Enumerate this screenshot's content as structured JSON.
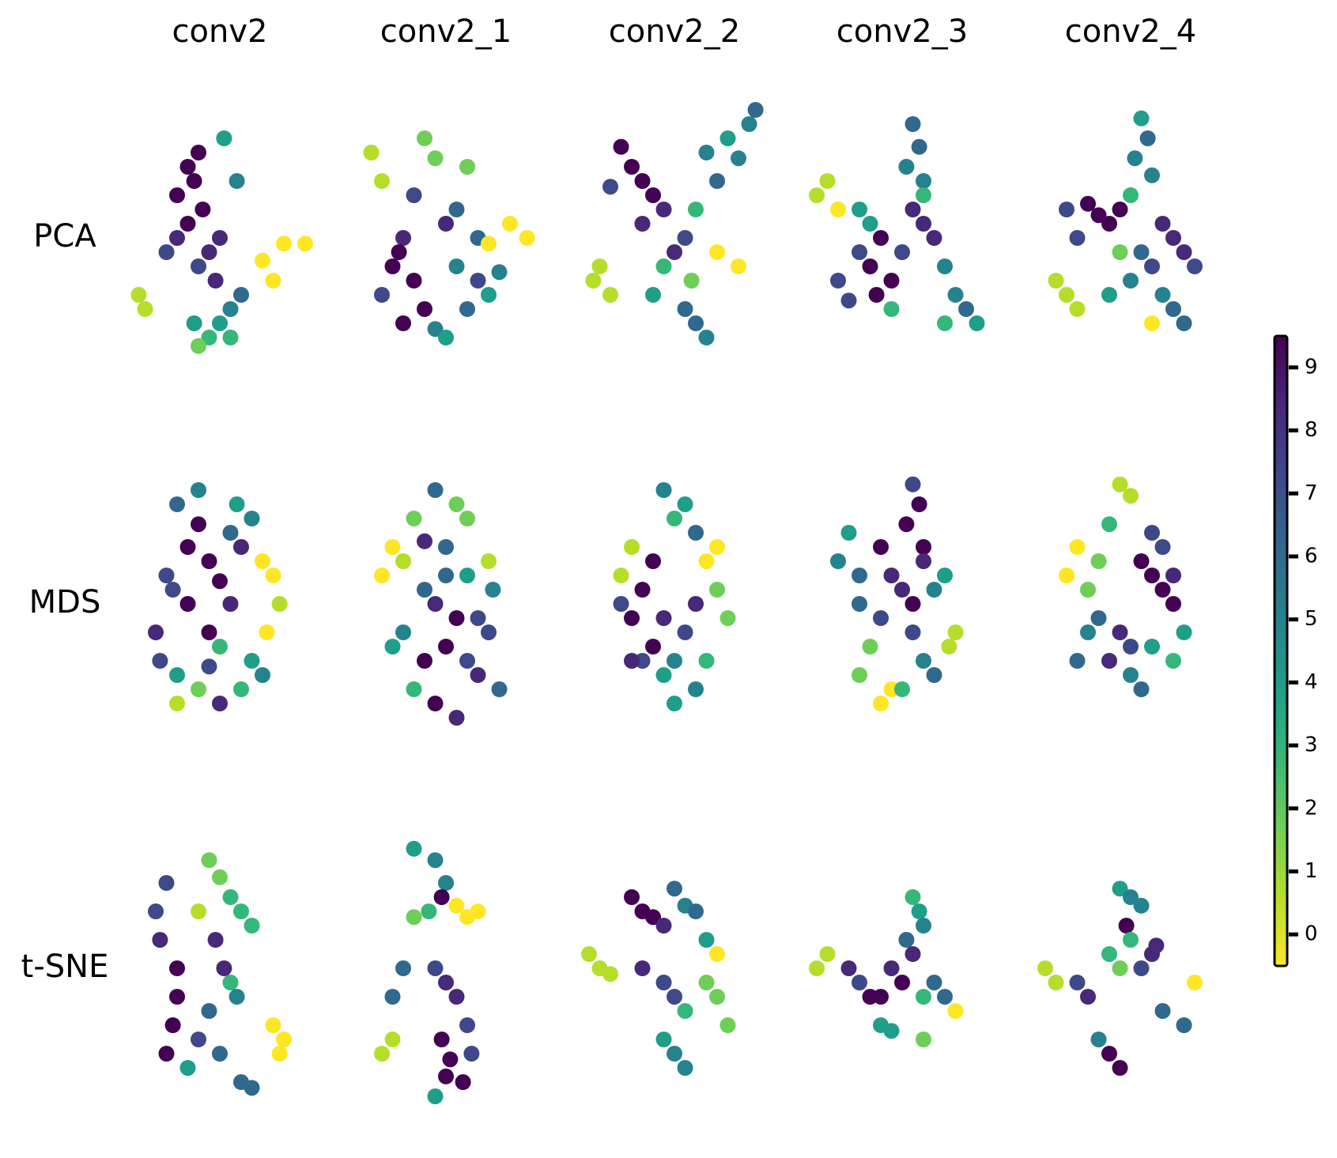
{
  "columns": [
    "conv2",
    "conv2_1",
    "conv2_2",
    "conv2_3",
    "conv2_4"
  ],
  "rows": [
    "PCA",
    "MDS",
    "t-SNE"
  ],
  "colorbar": {
    "lim": [
      -0.5,
      9.5
    ],
    "ticks": [
      0,
      1,
      2,
      3,
      4,
      5,
      6,
      7,
      8,
      9
    ],
    "colors": [
      "#fde725",
      "#b5de2b",
      "#6ece58",
      "#35b779",
      "#1f9e89",
      "#26828e",
      "#31688e",
      "#3e4989",
      "#482878",
      "#440154"
    ]
  },
  "chart_data": [
    {
      "type": "scatter",
      "xlim": [
        0,
        100
      ],
      "ylim": [
        0,
        100
      ],
      "x": [
        35,
        40,
        38,
        30,
        42,
        35,
        30,
        45,
        40,
        50,
        25,
        48,
        80,
        90,
        70,
        75,
        12,
        15,
        55,
        50,
        60,
        45,
        38,
        55,
        40,
        58,
        52
      ],
      "y": [
        75,
        80,
        70,
        65,
        60,
        55,
        50,
        45,
        40,
        50,
        45,
        35,
        48,
        48,
        42,
        35,
        30,
        25,
        25,
        20,
        30,
        15,
        20,
        15,
        12,
        70,
        85
      ],
      "c": [
        9,
        9,
        9,
        9,
        9,
        9,
        8,
        8,
        7,
        8,
        7,
        8,
        0,
        0,
        0,
        0,
        1,
        1,
        5,
        4,
        6,
        3,
        4,
        3,
        2,
        5,
        4
      ]
    },
    {
      "type": "scatter",
      "xlim": [
        0,
        100
      ],
      "ylim": [
        0,
        100
      ],
      "x": [
        15,
        20,
        40,
        45,
        60,
        55,
        35,
        50,
        65,
        30,
        25,
        35,
        40,
        30,
        28,
        80,
        88,
        70,
        55,
        65,
        70,
        45,
        50,
        60,
        75,
        20
      ],
      "y": [
        80,
        70,
        85,
        78,
        75,
        60,
        65,
        55,
        50,
        50,
        40,
        35,
        25,
        20,
        45,
        55,
        50,
        48,
        40,
        35,
        30,
        18,
        15,
        25,
        38,
        30
      ],
      "c": [
        1,
        1,
        2,
        2,
        2,
        6,
        7,
        8,
        6,
        8,
        9,
        9,
        9,
        9,
        9,
        0,
        0,
        0,
        5,
        7,
        4,
        5,
        4,
        6,
        5,
        7
      ]
    },
    {
      "type": "scatter",
      "xlim": [
        0,
        100
      ],
      "ylim": [
        0,
        100
      ],
      "x": [
        25,
        30,
        35,
        40,
        20,
        45,
        65,
        75,
        80,
        70,
        85,
        88,
        60,
        55,
        50,
        15,
        12,
        20,
        40,
        55,
        60,
        65,
        58,
        70,
        80,
        45,
        35
      ],
      "y": [
        82,
        75,
        70,
        65,
        68,
        60,
        80,
        85,
        78,
        70,
        90,
        95,
        60,
        50,
        45,
        40,
        35,
        30,
        30,
        25,
        20,
        15,
        35,
        45,
        40,
        40,
        55
      ],
      "c": [
        9,
        9,
        9,
        9,
        7,
        8,
        5,
        4,
        5,
        6,
        5,
        6,
        3,
        7,
        8,
        1,
        1,
        1,
        4,
        6,
        6,
        5,
        2,
        0,
        0,
        3,
        8
      ]
    },
    {
      "type": "scatter",
      "xlim": [
        0,
        100
      ],
      "ylim": [
        0,
        100
      ],
      "x": [
        55,
        58,
        52,
        60,
        15,
        10,
        20,
        30,
        40,
        35,
        45,
        38,
        25,
        30,
        55,
        60,
        65,
        50,
        70,
        75,
        80,
        85,
        60,
        45,
        20,
        35,
        70
      ],
      "y": [
        90,
        82,
        75,
        70,
        70,
        65,
        60,
        60,
        50,
        40,
        35,
        30,
        28,
        45,
        60,
        55,
        50,
        45,
        40,
        30,
        25,
        20,
        65,
        25,
        35,
        55,
        20
      ],
      "c": [
        6,
        6,
        5,
        5,
        1,
        1,
        0,
        4,
        9,
        9,
        9,
        9,
        7,
        7,
        8,
        8,
        8,
        7,
        5,
        5,
        6,
        4,
        3,
        3,
        7,
        4,
        3
      ]
    },
    {
      "type": "scatter",
      "xlim": [
        0,
        100
      ],
      "ylim": [
        0,
        100
      ],
      "x": [
        55,
        58,
        52,
        60,
        50,
        20,
        30,
        35,
        40,
        45,
        25,
        65,
        70,
        75,
        60,
        55,
        15,
        20,
        25,
        40,
        50,
        65,
        70,
        75,
        60,
        80,
        45
      ],
      "y": [
        92,
        85,
        78,
        72,
        65,
        60,
        62,
        58,
        55,
        60,
        50,
        55,
        50,
        45,
        40,
        45,
        35,
        30,
        25,
        30,
        35,
        30,
        25,
        20,
        20,
        40,
        45
      ],
      "c": [
        4,
        6,
        5,
        5,
        3,
        7,
        9,
        9,
        9,
        9,
        7,
        8,
        8,
        8,
        7,
        6,
        1,
        1,
        1,
        4,
        5,
        5,
        6,
        6,
        0,
        7,
        2
      ]
    },
    {
      "type": "scatter",
      "xlim": [
        0,
        100
      ],
      "ylim": [
        0,
        100
      ],
      "x": [
        30,
        40,
        35,
        45,
        50,
        25,
        55,
        60,
        65,
        70,
        75,
        78,
        72,
        20,
        22,
        30,
        40,
        50,
        60,
        65,
        45,
        35,
        55,
        30,
        45,
        50,
        70,
        58,
        40,
        28
      ],
      "y": [
        85,
        78,
        70,
        65,
        58,
        60,
        75,
        70,
        80,
        65,
        60,
        50,
        40,
        40,
        30,
        25,
        20,
        15,
        20,
        30,
        40,
        50,
        50,
        15,
        28,
        35,
        25,
        85,
        90,
        55
      ],
      "c": [
        6,
        9,
        9,
        9,
        9,
        7,
        6,
        8,
        5,
        0,
        0,
        1,
        0,
        8,
        7,
        4,
        2,
        8,
        3,
        4,
        9,
        9,
        8,
        1,
        7,
        3,
        5,
        4,
        5,
        7
      ]
    },
    {
      "type": "scatter",
      "xlim": [
        0,
        100
      ],
      "ylim": [
        0,
        100
      ],
      "x": [
        45,
        55,
        35,
        60,
        25,
        20,
        30,
        40,
        50,
        60,
        70,
        72,
        65,
        45,
        55,
        50,
        40,
        30,
        25,
        60,
        65,
        70,
        75,
        45,
        55,
        35,
        50,
        40
      ],
      "y": [
        90,
        85,
        80,
        80,
        70,
        60,
        65,
        72,
        70,
        60,
        65,
        55,
        45,
        50,
        45,
        35,
        30,
        40,
        35,
        30,
        25,
        40,
        20,
        15,
        10,
        20,
        60,
        55
      ],
      "c": [
        6,
        2,
        2,
        2,
        0,
        0,
        1,
        8,
        6,
        4,
        1,
        5,
        7,
        8,
        9,
        9,
        9,
        5,
        4,
        7,
        8,
        7,
        6,
        9,
        8,
        3,
        6,
        6
      ]
    },
    {
      "type": "scatter",
      "xlim": [
        0,
        100
      ],
      "ylim": [
        0,
        100
      ],
      "x": [
        45,
        55,
        50,
        60,
        30,
        25,
        40,
        35,
        30,
        45,
        40,
        60,
        65,
        70,
        75,
        55,
        50,
        45,
        60,
        65,
        35,
        50,
        70,
        30,
        25
      ],
      "y": [
        90,
        85,
        80,
        75,
        70,
        60,
        65,
        55,
        45,
        45,
        35,
        50,
        65,
        55,
        45,
        40,
        30,
        25,
        20,
        30,
        30,
        15,
        70,
        30,
        50
      ],
      "c": [
        5,
        4,
        3,
        6,
        1,
        1,
        9,
        9,
        9,
        8,
        9,
        8,
        0,
        2,
        2,
        7,
        5,
        4,
        5,
        3,
        7,
        4,
        0,
        8,
        7
      ]
    },
    {
      "type": "scatter",
      "xlim": [
        0,
        100
      ],
      "ylim": [
        0,
        100
      ],
      "x": [
        55,
        58,
        52,
        60,
        25,
        20,
        30,
        40,
        45,
        50,
        55,
        60,
        65,
        70,
        75,
        40,
        35,
        30,
        45,
        40,
        60,
        65,
        55,
        72,
        30,
        50
      ],
      "y": [
        92,
        85,
        78,
        70,
        75,
        65,
        60,
        70,
        60,
        55,
        50,
        65,
        55,
        60,
        40,
        45,
        35,
        25,
        20,
        15,
        30,
        25,
        40,
        35,
        50,
        20
      ],
      "c": [
        7,
        9,
        9,
        9,
        4,
        5,
        6,
        9,
        8,
        8,
        9,
        8,
        5,
        4,
        1,
        7,
        2,
        2,
        0,
        0,
        5,
        6,
        7,
        1,
        6,
        3
      ]
    },
    {
      "type": "scatter",
      "xlim": [
        0,
        100
      ],
      "ylim": [
        0,
        100
      ],
      "x": [
        45,
        50,
        40,
        60,
        65,
        70,
        25,
        20,
        30,
        55,
        60,
        65,
        70,
        35,
        30,
        45,
        40,
        50,
        60,
        70,
        75,
        50,
        25,
        35,
        55
      ],
      "y": [
        92,
        88,
        78,
        75,
        70,
        60,
        70,
        60,
        55,
        65,
        60,
        55,
        50,
        45,
        40,
        40,
        30,
        35,
        35,
        30,
        40,
        25,
        30,
        65,
        20
      ],
      "c": [
        1,
        1,
        3,
        7,
        7,
        8,
        0,
        0,
        2,
        9,
        9,
        9,
        9,
        6,
        5,
        8,
        8,
        7,
        4,
        3,
        4,
        5,
        6,
        2,
        6
      ]
    },
    {
      "type": "scatter",
      "xlim": [
        0,
        100
      ],
      "ylim": [
        0,
        100
      ],
      "x": [
        25,
        20,
        22,
        30,
        45,
        50,
        55,
        60,
        65,
        48,
        52,
        30,
        28,
        25,
        35,
        40,
        45,
        50,
        60,
        65,
        75,
        80,
        78,
        55,
        58,
        40
      ],
      "y": [
        80,
        70,
        60,
        50,
        88,
        82,
        75,
        70,
        65,
        60,
        50,
        40,
        30,
        20,
        15,
        25,
        35,
        20,
        10,
        8,
        30,
        25,
        20,
        45,
        40,
        70
      ],
      "c": [
        7,
        7,
        8,
        9,
        2,
        2,
        3,
        3,
        3,
        8,
        8,
        9,
        9,
        9,
        4,
        7,
        6,
        6,
        6,
        6,
        0,
        0,
        0,
        3,
        5,
        1
      ]
    },
    {
      "type": "scatter",
      "xlim": [
        0,
        100
      ],
      "ylim": [
        0,
        100
      ],
      "x": [
        35,
        45,
        50,
        48,
        42,
        55,
        60,
        65,
        35,
        30,
        25,
        45,
        50,
        55,
        60,
        20,
        25,
        48,
        52,
        58,
        62,
        45,
        50
      ],
      "y": [
        92,
        88,
        80,
        75,
        70,
        72,
        68,
        70,
        68,
        50,
        40,
        50,
        45,
        40,
        30,
        20,
        25,
        25,
        18,
        10,
        20,
        5,
        12
      ],
      "c": [
        4,
        5,
        5,
        9,
        3,
        0,
        0,
        0,
        2,
        6,
        6,
        7,
        8,
        8,
        7,
        1,
        1,
        9,
        9,
        9,
        7,
        4,
        9
      ]
    },
    {
      "type": "scatter",
      "xlim": [
        0,
        100
      ],
      "ylim": [
        0,
        100
      ],
      "x": [
        30,
        35,
        40,
        45,
        50,
        55,
        60,
        65,
        70,
        10,
        15,
        20,
        35,
        45,
        50,
        55,
        65,
        70,
        75,
        45,
        50,
        55
      ],
      "y": [
        75,
        70,
        68,
        65,
        78,
        72,
        70,
        60,
        55,
        55,
        50,
        48,
        50,
        45,
        40,
        35,
        45,
        40,
        30,
        25,
        20,
        15
      ],
      "c": [
        9,
        9,
        9,
        8,
        6,
        5,
        6,
        4,
        0,
        1,
        1,
        1,
        8,
        7,
        7,
        3,
        2,
        2,
        2,
        4,
        5,
        5
      ]
    },
    {
      "type": "scatter",
      "xlim": [
        0,
        100
      ],
      "ylim": [
        0,
        100
      ],
      "x": [
        55,
        58,
        60,
        52,
        15,
        10,
        25,
        30,
        40,
        45,
        50,
        55,
        60,
        65,
        70,
        75,
        35,
        40,
        45,
        60
      ],
      "y": [
        75,
        70,
        65,
        60,
        55,
        50,
        50,
        45,
        40,
        50,
        45,
        55,
        40,
        45,
        40,
        35,
        40,
        30,
        28,
        25
      ],
      "c": [
        3,
        4,
        5,
        6,
        1,
        1,
        8,
        7,
        9,
        8,
        9,
        8,
        3,
        6,
        6,
        0,
        9,
        4,
        4,
        2
      ]
    },
    {
      "type": "scatter",
      "xlim": [
        0,
        100
      ],
      "ylim": [
        0,
        100
      ],
      "x": [
        45,
        50,
        55,
        48,
        10,
        15,
        25,
        30,
        40,
        45,
        55,
        60,
        62,
        65,
        75,
        80,
        40,
        45,
        35,
        50
      ],
      "y": [
        78,
        75,
        72,
        65,
        50,
        45,
        45,
        40,
        55,
        50,
        50,
        55,
        58,
        35,
        30,
        45,
        20,
        15,
        25,
        60
      ],
      "c": [
        4,
        5,
        5,
        9,
        1,
        1,
        7,
        8,
        3,
        2,
        7,
        8,
        8,
        6,
        6,
        0,
        9,
        9,
        5,
        3
      ]
    }
  ]
}
